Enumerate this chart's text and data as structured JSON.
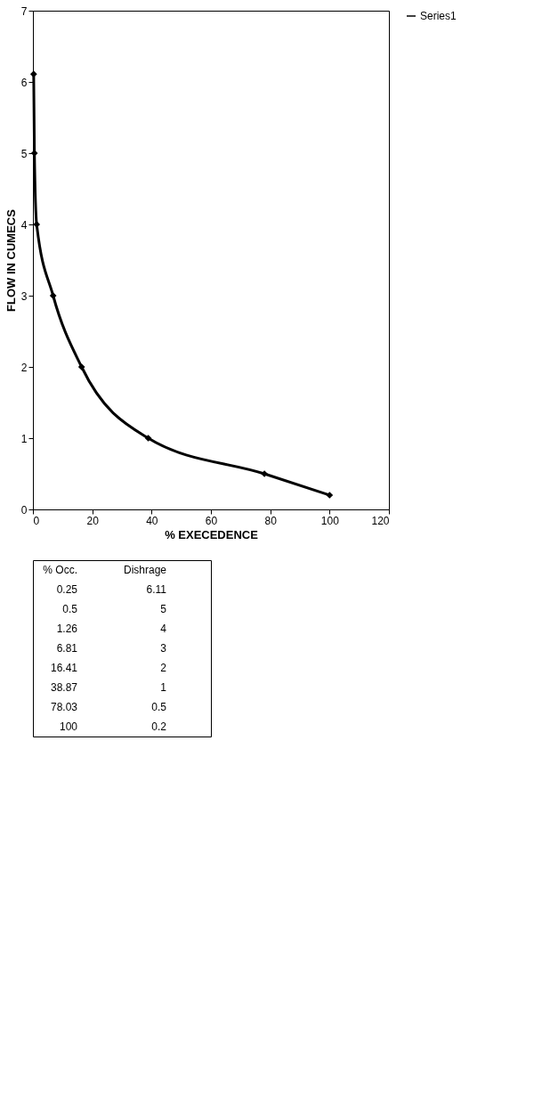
{
  "chart_data": [
    {
      "type": "line",
      "xlabel": "% EXECEDENCE",
      "ylabel": "FLOW IN CUMECS",
      "x": [
        0.25,
        0.5,
        1.26,
        6.81,
        16.41,
        38.87,
        78.03,
        100
      ],
      "series": [
        {
          "name": "Series1",
          "color": "#000000",
          "values": [
            6.11,
            5,
            4,
            3,
            2,
            1,
            0.5,
            0.2
          ]
        }
      ],
      "xlim": [
        0,
        120
      ],
      "xticks": [
        0,
        20,
        40,
        60,
        80,
        100,
        120
      ],
      "ylim": [
        0,
        7
      ],
      "yticks": [
        0,
        1,
        2,
        3,
        4,
        5,
        6,
        7
      ],
      "grid": false,
      "legend": "right",
      "marker": "diamond",
      "line_style": "solid"
    },
    {
      "type": "other",
      "annotations": [
        "% Occ.",
        "Dishrage",
        "0.25",
        "6.11",
        "0.5",
        "5",
        "1.26",
        "4",
        "6.81",
        "3",
        "16.41",
        "2",
        "38.87",
        "1",
        "78.03",
        "0.5",
        "100",
        "0.2"
      ]
    }
  ]
}
